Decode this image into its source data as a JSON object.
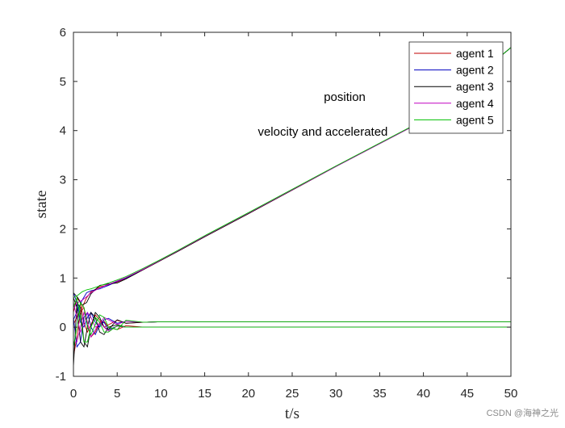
{
  "chart_data": {
    "type": "line",
    "xlabel": "t/s",
    "ylabel": "state",
    "xlim": [
      0,
      50
    ],
    "ylim": [
      -1,
      6
    ],
    "xticks": [
      "0",
      "5",
      "10",
      "15",
      "20",
      "25",
      "30",
      "35",
      "40",
      "45",
      "50"
    ],
    "yticks": [
      "-1",
      "0",
      "1",
      "2",
      "3",
      "4",
      "5",
      "6"
    ],
    "grid": false,
    "legend_position": "top-right",
    "annotations": [
      {
        "text": "position",
        "x": 31,
        "y": 4.6
      },
      {
        "text": "velocity and accelerated",
        "x": 28.5,
        "y": 3.9
      }
    ],
    "series": [
      {
        "name": "agent 1",
        "color": "#c00000",
        "position": {
          "x": [
            0,
            0.5,
            1,
            1.5,
            2,
            3,
            4,
            5,
            6,
            8,
            10,
            12,
            15,
            20,
            30,
            40,
            50
          ],
          "y": [
            0.05,
            0.25,
            0.4,
            0.6,
            0.72,
            0.82,
            0.86,
            0.92,
            0.99,
            1.17,
            1.36,
            1.55,
            1.84,
            2.31,
            3.27,
            4.2,
            5.69
          ]
        },
        "velocity": {
          "x": [
            0,
            0.4,
            0.8,
            1.2,
            1.6,
            2.0,
            2.5,
            3.0,
            3.5,
            4.0,
            5,
            6,
            8,
            10,
            15,
            20,
            50
          ],
          "y": [
            0.3,
            0.6,
            0.5,
            0.1,
            -0.1,
            0.05,
            0.25,
            0.15,
            0.0,
            0.05,
            0.14,
            0.08,
            0.1,
            0.11,
            0.11,
            0.11,
            0.11
          ]
        },
        "acceleration": {
          "x": [
            0,
            0.4,
            0.8,
            1.2,
            1.6,
            2.0,
            2.5,
            3.0,
            3.5,
            4,
            5,
            6,
            8,
            10,
            15,
            20,
            50
          ],
          "y": [
            -0.6,
            -0.2,
            0.3,
            0.4,
            0.1,
            -0.2,
            -0.1,
            0.1,
            0.12,
            0.0,
            -0.05,
            0.03,
            0.0,
            0.0,
            0.0,
            0.0,
            0.0
          ]
        }
      },
      {
        "name": "agent 2",
        "color": "#0000c0",
        "position": {
          "x": [
            0,
            0.5,
            1,
            1.5,
            2,
            3,
            4,
            5,
            6,
            8,
            10,
            12,
            15,
            20,
            30,
            40,
            50
          ],
          "y": [
            0.15,
            0.35,
            0.55,
            0.7,
            0.74,
            0.78,
            0.85,
            0.93,
            1.0,
            1.18,
            1.37,
            1.56,
            1.85,
            2.32,
            3.27,
            4.2,
            5.69
          ]
        },
        "velocity": {
          "x": [
            0,
            0.4,
            0.8,
            1.2,
            1.6,
            2.0,
            2.5,
            3.0,
            3.5,
            4.0,
            5,
            6,
            8,
            10,
            15,
            20,
            50
          ],
          "y": [
            0.7,
            0.5,
            0.1,
            0.0,
            0.2,
            0.3,
            0.1,
            0.0,
            0.15,
            0.18,
            0.08,
            0.12,
            0.1,
            0.11,
            0.11,
            0.11,
            0.11
          ]
        },
        "acceleration": {
          "x": [
            0,
            0.4,
            0.8,
            1.2,
            1.6,
            2.0,
            2.5,
            3.0,
            3.5,
            4,
            5,
            6,
            8,
            10,
            15,
            20,
            50
          ],
          "y": [
            0.2,
            -0.4,
            -0.3,
            0.2,
            0.3,
            0.0,
            -0.15,
            0.05,
            0.1,
            -0.05,
            0.02,
            0.0,
            0.0,
            0.0,
            0.0,
            0.0,
            0.0
          ]
        }
      },
      {
        "name": "agent 3",
        "color": "#000000",
        "position": {
          "x": [
            0,
            0.5,
            1,
            1.5,
            2,
            3,
            4,
            5,
            6,
            8,
            10,
            12,
            15,
            20,
            30,
            40,
            50
          ],
          "y": [
            0.7,
            0.6,
            0.45,
            0.5,
            0.68,
            0.85,
            0.88,
            0.9,
            0.98,
            1.17,
            1.36,
            1.55,
            1.84,
            2.31,
            3.27,
            4.2,
            5.69
          ]
        },
        "velocity": {
          "x": [
            0,
            0.4,
            0.8,
            1.2,
            1.6,
            2.0,
            2.5,
            3.0,
            3.5,
            4.0,
            5,
            6,
            8,
            10,
            15,
            20,
            50
          ],
          "y": [
            -0.8,
            0.5,
            0.4,
            -0.3,
            -0.4,
            0.0,
            0.3,
            0.2,
            0.0,
            -0.05,
            0.15,
            0.08,
            0.1,
            0.11,
            0.11,
            0.11,
            0.11
          ]
        },
        "acceleration": {
          "x": [
            0,
            0.4,
            0.8,
            1.2,
            1.6,
            2.0,
            2.5,
            3.0,
            3.5,
            4,
            5,
            6,
            8,
            10,
            15,
            20,
            50
          ],
          "y": [
            0.6,
            0.4,
            -0.3,
            -0.4,
            0.0,
            0.3,
            0.2,
            -0.1,
            -0.15,
            0.0,
            0.05,
            0.0,
            0.0,
            0.0,
            0.0,
            0.0,
            0.0
          ]
        }
      },
      {
        "name": "agent 4",
        "color": "#c000c0",
        "position": {
          "x": [
            0,
            0.5,
            1,
            1.5,
            2,
            3,
            4,
            5,
            6,
            8,
            10,
            12,
            15,
            20,
            30,
            40,
            50
          ],
          "y": [
            0.4,
            0.5,
            0.55,
            0.62,
            0.7,
            0.8,
            0.87,
            0.94,
            1.01,
            1.18,
            1.37,
            1.56,
            1.85,
            2.32,
            3.27,
            4.2,
            5.69
          ]
        },
        "velocity": {
          "x": [
            0,
            0.4,
            0.8,
            1.2,
            1.6,
            2.0,
            2.5,
            3.0,
            3.5,
            4.0,
            5,
            6,
            8,
            10,
            15,
            20,
            50
          ],
          "y": [
            0.5,
            0.2,
            -0.1,
            0.1,
            0.3,
            0.2,
            0.0,
            0.05,
            0.2,
            0.15,
            0.06,
            0.12,
            0.1,
            0.11,
            0.11,
            0.11,
            0.11
          ]
        },
        "acceleration": {
          "x": [
            0,
            0.4,
            0.8,
            1.2,
            1.6,
            2.0,
            2.5,
            3.0,
            3.5,
            4,
            5,
            6,
            8,
            10,
            15,
            20,
            50
          ],
          "y": [
            -0.3,
            -0.3,
            0.0,
            0.3,
            0.1,
            -0.2,
            -0.05,
            0.1,
            0.0,
            -0.08,
            0.02,
            0.0,
            0.0,
            0.0,
            0.0,
            0.0,
            0.0
          ]
        }
      },
      {
        "name": "agent 5",
        "color": "#00c000",
        "position": {
          "x": [
            0,
            0.5,
            1,
            1.5,
            2,
            3,
            4,
            5,
            6,
            8,
            10,
            12,
            15,
            20,
            30,
            40,
            50
          ],
          "y": [
            0.6,
            0.65,
            0.72,
            0.76,
            0.78,
            0.84,
            0.9,
            0.96,
            1.03,
            1.2,
            1.38,
            1.57,
            1.86,
            2.33,
            3.28,
            4.21,
            5.69
          ]
        },
        "velocity": {
          "x": [
            0,
            0.4,
            0.8,
            1.2,
            1.6,
            2.0,
            2.5,
            3.0,
            3.5,
            4.0,
            5,
            6,
            8,
            10,
            15,
            20,
            50
          ],
          "y": [
            -0.4,
            0.0,
            0.5,
            0.4,
            0.0,
            -0.15,
            0.05,
            0.25,
            0.2,
            0.0,
            -0.05,
            0.14,
            0.1,
            0.11,
            0.11,
            0.11,
            0.11
          ]
        },
        "acceleration": {
          "x": [
            0,
            0.4,
            0.8,
            1.2,
            1.6,
            2.0,
            2.5,
            3.0,
            3.5,
            4,
            5,
            6,
            8,
            10,
            15,
            20,
            50
          ],
          "y": [
            0.4,
            0.6,
            0.2,
            -0.3,
            -0.3,
            0.0,
            0.2,
            0.1,
            -0.1,
            -0.1,
            0.03,
            0.0,
            0.0,
            0.0,
            0.0,
            0.0,
            0.0
          ]
        }
      }
    ]
  },
  "watermark": "CSDN @海神之光"
}
